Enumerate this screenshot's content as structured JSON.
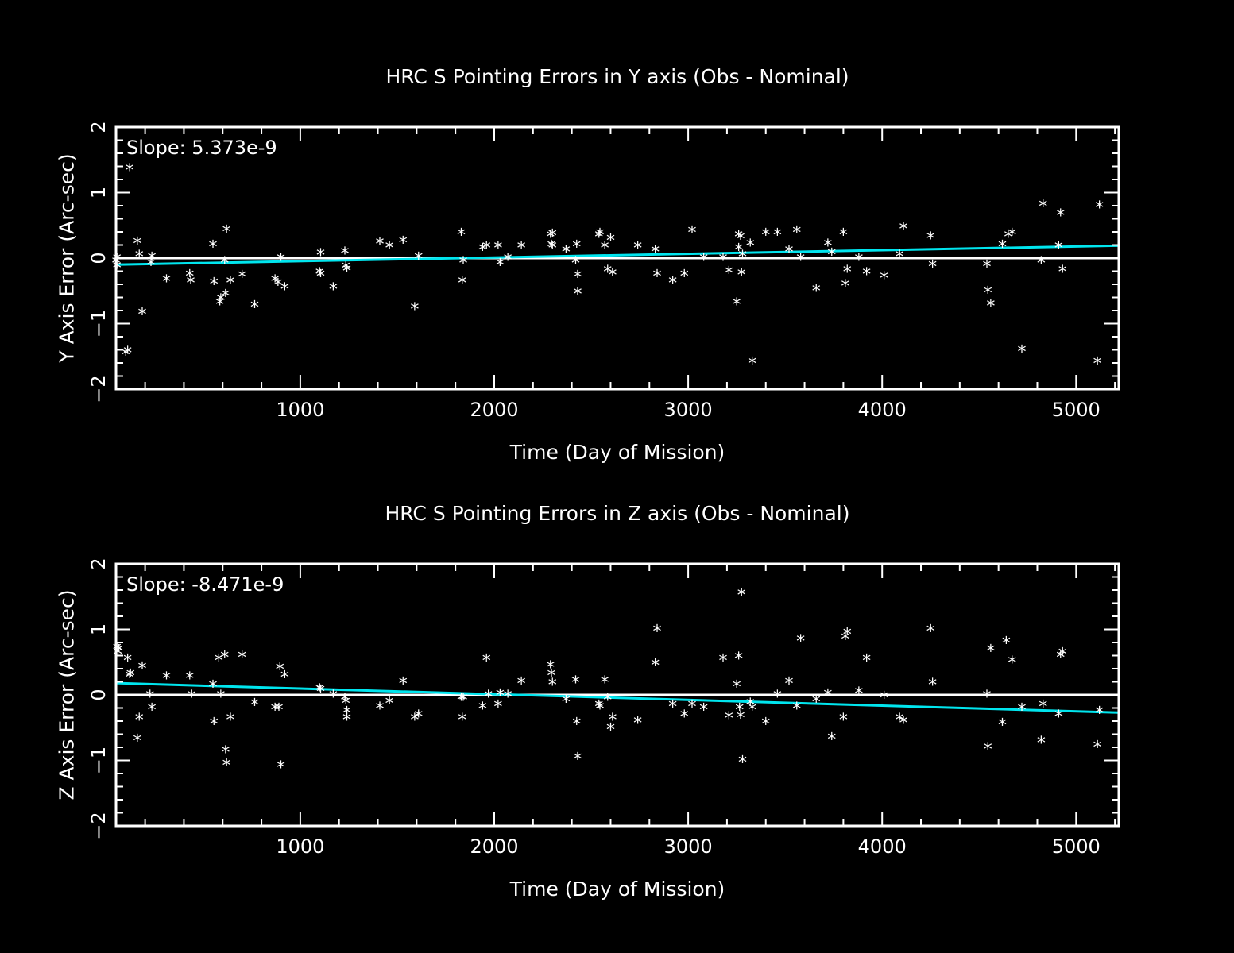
{
  "chart_data": [
    {
      "type": "scatter",
      "title": "HRC S Pointing Errors in Y axis (Obs - Nominal)",
      "xlabel": "Time (Day of Mission)",
      "ylabel": "Y Axis Error (Arc-sec)",
      "annotation": "Slope: 5.373e-9",
      "xlim": [
        50,
        5220
      ],
      "ylim": [
        -2,
        2
      ],
      "xticks": [
        1000,
        2000,
        3000,
        4000,
        5000
      ],
      "yticks": [
        -2,
        -1,
        0,
        1,
        2
      ],
      "fit": {
        "x": [
          50,
          5220
        ],
        "y": [
          -0.1,
          0.19
        ],
        "color": "#00e5ee"
      },
      "zero_line": 0,
      "points": [
        [
          50,
          -0.05
        ],
        [
          55,
          -0.12
        ],
        [
          55,
          0.0
        ],
        [
          100,
          -1.45
        ],
        [
          110,
          -1.42
        ],
        [
          120,
          1.37
        ],
        [
          160,
          0.25
        ],
        [
          170,
          0.05
        ],
        [
          185,
          -0.83
        ],
        [
          230,
          -0.08
        ],
        [
          235,
          0.02
        ],
        [
          310,
          -0.33
        ],
        [
          430,
          -0.25
        ],
        [
          435,
          -0.35
        ],
        [
          550,
          0.2
        ],
        [
          555,
          -0.37
        ],
        [
          585,
          -0.68
        ],
        [
          590,
          -0.62
        ],
        [
          610,
          -0.05
        ],
        [
          615,
          -0.55
        ],
        [
          620,
          0.43
        ],
        [
          640,
          -0.35
        ],
        [
          700,
          -0.26
        ],
        [
          765,
          -0.72
        ],
        [
          870,
          -0.33
        ],
        [
          885,
          -0.38
        ],
        [
          900,
          0.0
        ],
        [
          920,
          -0.45
        ],
        [
          1100,
          -0.22
        ],
        [
          1105,
          -0.25
        ],
        [
          1105,
          0.07
        ],
        [
          1170,
          -0.45
        ],
        [
          1230,
          0.1
        ],
        [
          1235,
          -0.13
        ],
        [
          1240,
          -0.17
        ],
        [
          1410,
          0.24
        ],
        [
          1460,
          0.18
        ],
        [
          1530,
          0.26
        ],
        [
          1590,
          -0.75
        ],
        [
          1610,
          0.02
        ],
        [
          1830,
          0.38
        ],
        [
          1835,
          -0.35
        ],
        [
          1840,
          -0.05
        ],
        [
          1940,
          0.15
        ],
        [
          1960,
          0.18
        ],
        [
          2020,
          0.18
        ],
        [
          2030,
          -0.08
        ],
        [
          2070,
          0.0
        ],
        [
          2140,
          0.18
        ],
        [
          2290,
          0.35
        ],
        [
          2295,
          0.2
        ],
        [
          2300,
          0.18
        ],
        [
          2300,
          0.37
        ],
        [
          2370,
          0.12
        ],
        [
          2420,
          -0.05
        ],
        [
          2425,
          0.2
        ],
        [
          2430,
          -0.26
        ],
        [
          2430,
          -0.52
        ],
        [
          2540,
          0.35
        ],
        [
          2545,
          0.38
        ],
        [
          2570,
          0.18
        ],
        [
          2585,
          -0.18
        ],
        [
          2600,
          0.3
        ],
        [
          2610,
          -0.23
        ],
        [
          2740,
          0.18
        ],
        [
          2830,
          0.12
        ],
        [
          2840,
          -0.25
        ],
        [
          2920,
          -0.35
        ],
        [
          2980,
          -0.25
        ],
        [
          3020,
          0.42
        ],
        [
          3080,
          0.0
        ],
        [
          3180,
          0.0
        ],
        [
          3210,
          -0.2
        ],
        [
          3250,
          -0.68
        ],
        [
          3260,
          0.35
        ],
        [
          3260,
          0.15
        ],
        [
          3270,
          0.32
        ],
        [
          3275,
          -0.23
        ],
        [
          3280,
          0.05
        ],
        [
          3320,
          0.22
        ],
        [
          3330,
          -1.58
        ],
        [
          3400,
          0.38
        ],
        [
          3460,
          0.38
        ],
        [
          3520,
          0.12
        ],
        [
          3560,
          0.42
        ],
        [
          3580,
          0.0
        ],
        [
          3660,
          -0.47
        ],
        [
          3720,
          0.22
        ],
        [
          3740,
          0.08
        ],
        [
          3800,
          0.38
        ],
        [
          3810,
          -0.4
        ],
        [
          3820,
          -0.18
        ],
        [
          3880,
          0.0
        ],
        [
          3920,
          -0.22
        ],
        [
          4010,
          -0.28
        ],
        [
          4090,
          0.05
        ],
        [
          4110,
          0.47
        ],
        [
          4250,
          0.33
        ],
        [
          4260,
          -0.1
        ],
        [
          4540,
          -0.1
        ],
        [
          4545,
          -0.5
        ],
        [
          4560,
          -0.7
        ],
        [
          4620,
          0.2
        ],
        [
          4650,
          0.35
        ],
        [
          4670,
          0.38
        ],
        [
          4720,
          -1.4
        ],
        [
          4820,
          -0.05
        ],
        [
          4830,
          0.82
        ],
        [
          4910,
          0.18
        ],
        [
          4920,
          0.68
        ],
        [
          4930,
          -0.18
        ],
        [
          5110,
          -1.58
        ],
        [
          5120,
          0.8
        ]
      ]
    },
    {
      "type": "scatter",
      "title": "HRC S Pointing Errors in  Z axis (Obs - Nominal)",
      "xlabel": "Time (Day of Mission)",
      "ylabel": "Z Axis Error (Arc-sec)",
      "annotation": "Slope: -8.471e-9",
      "xlim": [
        50,
        5220
      ],
      "ylim": [
        -2,
        2
      ],
      "xticks": [
        1000,
        2000,
        3000,
        4000,
        5000
      ],
      "yticks": [
        -2,
        -1,
        0,
        1,
        2
      ],
      "fit": {
        "x": [
          50,
          5220
        ],
        "y": [
          0.18,
          -0.27
        ],
        "color": "#00e5ee"
      },
      "zero_line": 0,
      "points": [
        [
          55,
          0.72
        ],
        [
          60,
          0.65
        ],
        [
          65,
          0.7
        ],
        [
          110,
          0.55
        ],
        [
          120,
          0.3
        ],
        [
          125,
          0.32
        ],
        [
          160,
          -0.67
        ],
        [
          170,
          -0.35
        ],
        [
          185,
          0.43
        ],
        [
          225,
          0.0
        ],
        [
          235,
          -0.2
        ],
        [
          310,
          0.28
        ],
        [
          430,
          0.28
        ],
        [
          440,
          0.0
        ],
        [
          550,
          0.15
        ],
        [
          555,
          -0.42
        ],
        [
          580,
          0.55
        ],
        [
          590,
          0.0
        ],
        [
          610,
          0.6
        ],
        [
          615,
          -0.85
        ],
        [
          620,
          -1.05
        ],
        [
          640,
          -0.35
        ],
        [
          700,
          0.6
        ],
        [
          765,
          -0.13
        ],
        [
          870,
          -0.2
        ],
        [
          890,
          -0.2
        ],
        [
          895,
          0.42
        ],
        [
          900,
          -1.08
        ],
        [
          920,
          0.3
        ],
        [
          1100,
          0.1
        ],
        [
          1105,
          0.08
        ],
        [
          1170,
          0.0
        ],
        [
          1230,
          -0.05
        ],
        [
          1235,
          -0.1
        ],
        [
          1240,
          -0.25
        ],
        [
          1240,
          -0.35
        ],
        [
          1410,
          -0.18
        ],
        [
          1460,
          -0.1
        ],
        [
          1530,
          0.2
        ],
        [
          1590,
          -0.35
        ],
        [
          1610,
          -0.3
        ],
        [
          1830,
          -0.05
        ],
        [
          1835,
          -0.35
        ],
        [
          1840,
          -0.05
        ],
        [
          1940,
          -0.18
        ],
        [
          1960,
          0.55
        ],
        [
          1970,
          0.0
        ],
        [
          2020,
          -0.15
        ],
        [
          2030,
          0.02
        ],
        [
          2070,
          0.0
        ],
        [
          2140,
          0.2
        ],
        [
          2290,
          0.45
        ],
        [
          2295,
          0.32
        ],
        [
          2300,
          0.18
        ],
        [
          2370,
          -0.08
        ],
        [
          2420,
          0.22
        ],
        [
          2425,
          -0.42
        ],
        [
          2430,
          -0.95
        ],
        [
          2540,
          -0.15
        ],
        [
          2545,
          -0.18
        ],
        [
          2570,
          0.22
        ],
        [
          2585,
          -0.05
        ],
        [
          2600,
          -0.5
        ],
        [
          2610,
          -0.35
        ],
        [
          2740,
          -0.4
        ],
        [
          2830,
          0.48
        ],
        [
          2840,
          1.0
        ],
        [
          2920,
          -0.15
        ],
        [
          2980,
          -0.3
        ],
        [
          3020,
          -0.15
        ],
        [
          3080,
          -0.2
        ],
        [
          3180,
          0.55
        ],
        [
          3210,
          -0.33
        ],
        [
          3250,
          0.15
        ],
        [
          3260,
          0.58
        ],
        [
          3265,
          -0.2
        ],
        [
          3270,
          -0.32
        ],
        [
          3275,
          1.55
        ],
        [
          3280,
          -1.0
        ],
        [
          3320,
          -0.12
        ],
        [
          3330,
          -0.2
        ],
        [
          3400,
          -0.42
        ],
        [
          3460,
          0.0
        ],
        [
          3520,
          0.2
        ],
        [
          3560,
          -0.18
        ],
        [
          3580,
          0.85
        ],
        [
          3660,
          -0.08
        ],
        [
          3720,
          0.02
        ],
        [
          3740,
          -0.65
        ],
        [
          3800,
          -0.35
        ],
        [
          3810,
          0.88
        ],
        [
          3820,
          0.95
        ],
        [
          3880,
          0.05
        ],
        [
          3920,
          0.55
        ],
        [
          4010,
          -0.02
        ],
        [
          4090,
          -0.35
        ],
        [
          4110,
          -0.4
        ],
        [
          4250,
          1.0
        ],
        [
          4260,
          0.18
        ],
        [
          4540,
          0.0
        ],
        [
          4545,
          -0.8
        ],
        [
          4560,
          0.7
        ],
        [
          4620,
          -0.43
        ],
        [
          4640,
          0.82
        ],
        [
          4670,
          0.52
        ],
        [
          4720,
          -0.2
        ],
        [
          4820,
          -0.7
        ],
        [
          4830,
          -0.15
        ],
        [
          4910,
          -0.3
        ],
        [
          4920,
          0.6
        ],
        [
          4930,
          0.65
        ],
        [
          5110,
          -0.77
        ],
        [
          5120,
          -0.25
        ]
      ]
    }
  ]
}
